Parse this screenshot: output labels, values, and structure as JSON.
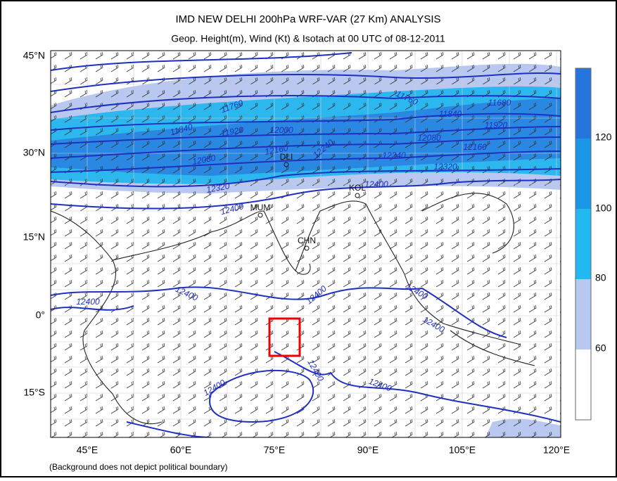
{
  "title": "IMD NEW DELHI 200hPa WRF-VAR (27 Km) ANALYSIS",
  "subtitle": "Geop. Height(m), Wind (Kt) & Isotach  at 00 UTC of 08-12-2011",
  "footnote": "(Background does not depict political boundary)",
  "lon_labels": [
    "45°E",
    "60°E",
    "75°E",
    "90°E",
    "105°E",
    "120°E"
  ],
  "lat_labels": [
    "45°N",
    "30°N",
    "15°N",
    "0°",
    "15°S"
  ],
  "colorbar_labels": [
    "120",
    "100",
    "80",
    "60"
  ],
  "contour_labels": [
    "11760",
    "11840",
    "11680",
    "11920",
    "12080",
    "12160",
    "12240",
    "12320",
    "11760",
    "11840",
    "11920",
    "12000",
    "12080",
    "12160",
    "12240",
    "12320",
    "12400",
    "12400",
    "12400",
    "12400",
    "12400",
    "12400",
    "12400",
    "12400",
    "12400",
    "12400"
  ],
  "stations": [
    "DLI",
    "KOL",
    "MUM",
    "CHN"
  ]
}
